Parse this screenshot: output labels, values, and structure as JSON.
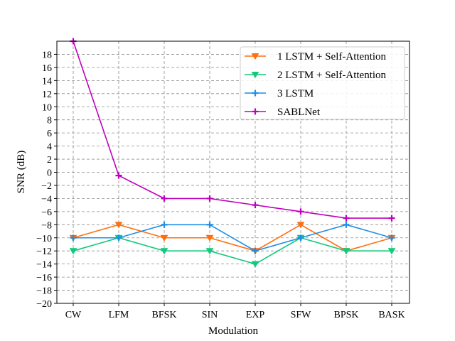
{
  "chart_data": {
    "type": "line",
    "categories": [
      "CW",
      "LFM",
      "BFSK",
      "SIN",
      "EXP",
      "SFW",
      "BPSK",
      "BASK"
    ],
    "xlabel": "Modulation",
    "ylabel": "SNR (dB)",
    "ylim": [
      -20,
      20
    ],
    "yticks": [
      -20,
      -18,
      -16,
      -14,
      -12,
      -10,
      -8,
      -6,
      -4,
      -2,
      0,
      2,
      4,
      6,
      8,
      10,
      12,
      14,
      16,
      18
    ],
    "grid": true,
    "legend_position": "top-right",
    "series": [
      {
        "name": "1 LSTM + Self-Attention",
        "color": "#ff6f0e",
        "marker": "triangle-down",
        "values": [
          -10,
          -8,
          -10,
          -10,
          -12,
          -8,
          -12,
          -10
        ]
      },
      {
        "name": "2 LSTM + Self-Attention",
        "color": "#13c97c",
        "marker": "triangle-down",
        "values": [
          -12,
          -10,
          -12,
          -12,
          -14,
          -10,
          -12,
          -12
        ]
      },
      {
        "name": "3 LSTM",
        "color": "#1f8fe8",
        "marker": "plus",
        "values": [
          -10,
          -10,
          -8,
          -8,
          -12,
          -10,
          -8,
          -10
        ]
      },
      {
        "name": "SABLNet",
        "color": "#bf00bf",
        "marker": "plus",
        "values": [
          20,
          -0.5,
          -4,
          -4,
          -5,
          -6,
          -7,
          -7
        ]
      }
    ]
  }
}
